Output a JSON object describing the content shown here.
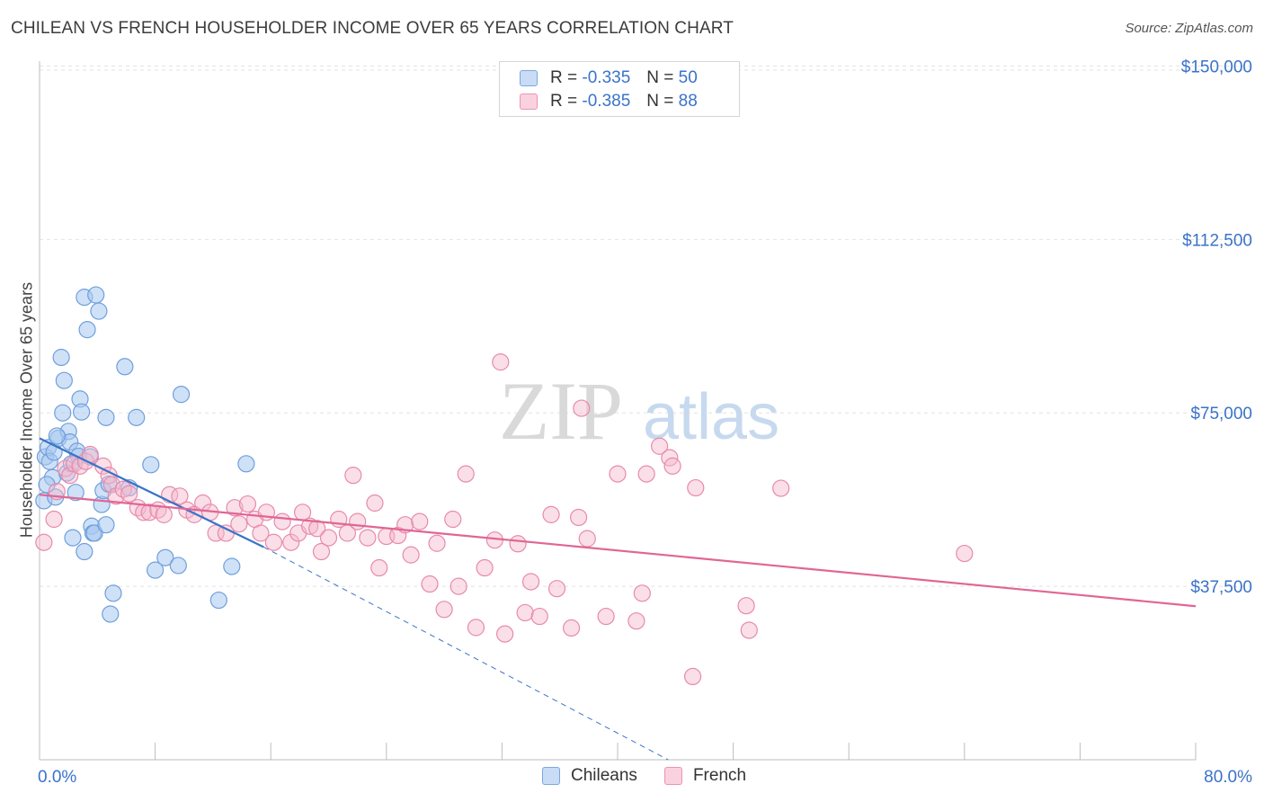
{
  "header": {
    "title": "CHILEAN VS FRENCH HOUSEHOLDER INCOME OVER 65 YEARS CORRELATION CHART",
    "source": "Source: ZipAtlas.com"
  },
  "watermark": {
    "zip": "ZIP",
    "atlas": "atlas"
  },
  "legend": {
    "rows": [
      {
        "r_label": "R =",
        "r_value": "-0.335",
        "n_label": "N =",
        "n_value": "50",
        "color": "#a8c8f0"
      },
      {
        "r_label": "R =",
        "r_value": "-0.385",
        "n_label": "N =",
        "n_value": "88",
        "color": "#f5b8cc"
      }
    ]
  },
  "bottom_legend": {
    "items": [
      {
        "label": "Chileans",
        "color": "#a8c8f0"
      },
      {
        "label": "French",
        "color": "#f5b8cc"
      }
    ]
  },
  "colors": {
    "blue": "#3a73c8",
    "blue_fill": "#a8c8f0",
    "pink": "#e06694",
    "pink_fill": "#f5b8cc",
    "tick_text": "#3a73c8"
  },
  "chart_data": {
    "type": "scatter",
    "title": "CHILEAN VS FRENCH HOUSEHOLDER INCOME OVER 65 YEARS CORRELATION CHART",
    "xlabel": "",
    "ylabel": "Householder Income Over 65 years",
    "xlim": [
      0,
      80
    ],
    "ylim": [
      0,
      153000
    ],
    "x_tick_labels": [
      "0.0%",
      "80.0%"
    ],
    "y_ticks": [
      37500,
      75000,
      112500,
      150000
    ],
    "y_tick_labels": [
      "$37,500",
      "$75,000",
      "$112,500",
      "$150,000"
    ],
    "grid": true,
    "legend_placement": "top-center",
    "series": [
      {
        "name": "Chileans",
        "color": "#a8c8f0",
        "points": [
          [
            0.3,
            56000
          ],
          [
            0.4,
            65500
          ],
          [
            0.6,
            67500
          ],
          [
            0.7,
            64500
          ],
          [
            0.9,
            61000
          ],
          [
            1.0,
            66500
          ],
          [
            1.1,
            56800
          ],
          [
            1.3,
            69500
          ],
          [
            1.5,
            87000
          ],
          [
            1.6,
            75000
          ],
          [
            1.7,
            82000
          ],
          [
            1.9,
            62000
          ],
          [
            2.0,
            71000
          ],
          [
            2.1,
            68700
          ],
          [
            2.3,
            48000
          ],
          [
            2.5,
            57800
          ],
          [
            2.6,
            66700
          ],
          [
            2.7,
            65600
          ],
          [
            2.8,
            78000
          ],
          [
            2.9,
            75200
          ],
          [
            3.1,
            100000
          ],
          [
            3.1,
            45000
          ],
          [
            3.3,
            93000
          ],
          [
            3.5,
            65500
          ],
          [
            3.6,
            50500
          ],
          [
            3.7,
            49000
          ],
          [
            3.8,
            49000
          ],
          [
            3.9,
            100500
          ],
          [
            4.1,
            97000
          ],
          [
            4.3,
            55200
          ],
          [
            4.4,
            58200
          ],
          [
            4.6,
            74000
          ],
          [
            4.6,
            50800
          ],
          [
            4.8,
            59600
          ],
          [
            4.9,
            31500
          ],
          [
            5.1,
            36000
          ],
          [
            5.9,
            85000
          ],
          [
            6.2,
            58800
          ],
          [
            6.7,
            74000
          ],
          [
            7.7,
            63800
          ],
          [
            8.0,
            41000
          ],
          [
            8.7,
            43700
          ],
          [
            9.6,
            42000
          ],
          [
            9.8,
            79000
          ],
          [
            12.4,
            34500
          ],
          [
            13.3,
            41800
          ],
          [
            14.3,
            64000
          ],
          [
            0.5,
            59500
          ],
          [
            1.2,
            70000
          ],
          [
            2.2,
            64000
          ]
        ]
      },
      {
        "name": "French",
        "color": "#f5b8cc",
        "points": [
          [
            0.3,
            47000
          ],
          [
            1.0,
            52000
          ],
          [
            1.2,
            58000
          ],
          [
            1.8,
            63000
          ],
          [
            2.1,
            61500
          ],
          [
            2.4,
            64000
          ],
          [
            2.8,
            63500
          ],
          [
            3.2,
            64500
          ],
          [
            3.5,
            66000
          ],
          [
            4.4,
            63500
          ],
          [
            4.8,
            61500
          ],
          [
            5.0,
            59500
          ],
          [
            5.3,
            57000
          ],
          [
            5.8,
            58500
          ],
          [
            6.2,
            57500
          ],
          [
            6.8,
            54500
          ],
          [
            7.2,
            53500
          ],
          [
            7.6,
            53500
          ],
          [
            8.2,
            54000
          ],
          [
            8.6,
            53000
          ],
          [
            9.0,
            57300
          ],
          [
            9.7,
            57000
          ],
          [
            10.2,
            54000
          ],
          [
            10.7,
            53000
          ],
          [
            11.3,
            55500
          ],
          [
            11.8,
            53500
          ],
          [
            12.2,
            49000
          ],
          [
            12.9,
            49000
          ],
          [
            13.5,
            54500
          ],
          [
            13.8,
            51000
          ],
          [
            14.4,
            55300
          ],
          [
            14.9,
            52000
          ],
          [
            15.3,
            49000
          ],
          [
            15.7,
            53500
          ],
          [
            16.2,
            47000
          ],
          [
            16.8,
            51500
          ],
          [
            17.4,
            47000
          ],
          [
            17.9,
            49000
          ],
          [
            18.2,
            53500
          ],
          [
            18.7,
            50500
          ],
          [
            19.2,
            50000
          ],
          [
            19.5,
            45000
          ],
          [
            20.0,
            48000
          ],
          [
            20.7,
            52000
          ],
          [
            21.3,
            49000
          ],
          [
            21.7,
            61500
          ],
          [
            22.0,
            51500
          ],
          [
            22.7,
            48000
          ],
          [
            23.2,
            55500
          ],
          [
            23.5,
            41500
          ],
          [
            24.0,
            48300
          ],
          [
            24.8,
            48500
          ],
          [
            25.3,
            50800
          ],
          [
            25.7,
            44300
          ],
          [
            26.3,
            51500
          ],
          [
            27.0,
            38000
          ],
          [
            27.5,
            46800
          ],
          [
            28.0,
            32500
          ],
          [
            28.6,
            52000
          ],
          [
            29.0,
            37500
          ],
          [
            29.5,
            61800
          ],
          [
            30.2,
            28600
          ],
          [
            30.8,
            41500
          ],
          [
            31.5,
            47500
          ],
          [
            31.9,
            86000
          ],
          [
            32.2,
            27200
          ],
          [
            33.1,
            46700
          ],
          [
            33.6,
            31800
          ],
          [
            34.0,
            38500
          ],
          [
            34.6,
            31000
          ],
          [
            35.4,
            53000
          ],
          [
            35.8,
            37000
          ],
          [
            36.8,
            28500
          ],
          [
            37.3,
            52400
          ],
          [
            37.5,
            76000
          ],
          [
            37.9,
            47800
          ],
          [
            39.2,
            31000
          ],
          [
            40.0,
            61800
          ],
          [
            41.3,
            30000
          ],
          [
            41.7,
            36000
          ],
          [
            42.0,
            61800
          ],
          [
            42.9,
            67800
          ],
          [
            43.6,
            65300
          ],
          [
            43.8,
            63500
          ],
          [
            45.2,
            18000
          ],
          [
            45.4,
            58800
          ],
          [
            48.9,
            33300
          ],
          [
            49.1,
            28000
          ]
        ]
      }
    ],
    "extra_points": [
      {
        "series": "French",
        "x": 51.3,
        "y": 58700
      },
      {
        "series": "French",
        "x": 64.0,
        "y": 44600
      }
    ],
    "trendlines": [
      {
        "series": "Chileans",
        "x_start": 0,
        "y_start": 69500,
        "x_end": 15.5,
        "y_end": 46000,
        "extension_x_end": 43.5,
        "extension_y_end": 0,
        "extension_style": "dashed"
      },
      {
        "series": "French",
        "x_start": 0,
        "y_start": 57300,
        "x_end": 80,
        "y_end": 33200
      }
    ],
    "annotations": []
  }
}
